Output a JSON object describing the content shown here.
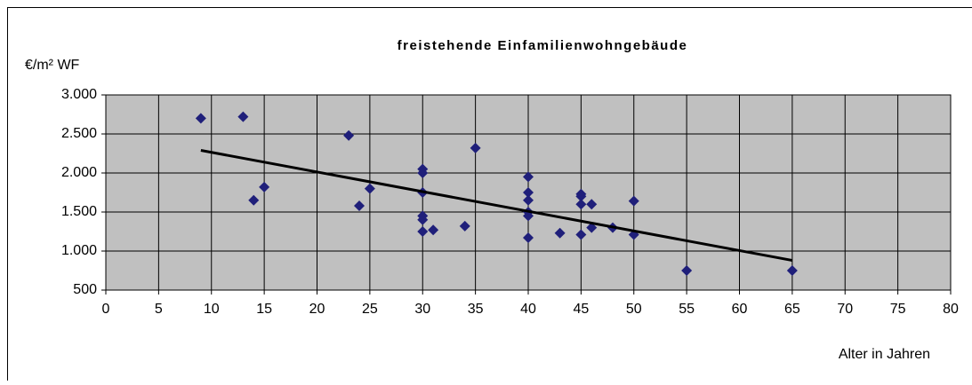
{
  "chart_data": {
    "type": "scatter",
    "title": "freistehende Einfamilienwohngebäude",
    "y_label": "€/m² WF",
    "x_label": "Alter in Jahren",
    "xlim": [
      0,
      80
    ],
    "xticks": [
      0,
      5,
      10,
      15,
      20,
      25,
      30,
      35,
      40,
      45,
      50,
      55,
      60,
      65,
      70,
      75,
      80
    ],
    "ylim": [
      500,
      3000
    ],
    "yticks": [
      500,
      {
        "value": 1000,
        "label": "1.000"
      },
      {
        "value": 1500,
        "label": "1.500"
      },
      {
        "value": 2000,
        "label": "2.000"
      },
      {
        "value": 2500,
        "label": "2.500"
      },
      {
        "value": 3000,
        "label": "3.000"
      }
    ],
    "grid": true,
    "series": [
      {
        "color": "#1f1f7a",
        "x": [
          9,
          13,
          14,
          15,
          23,
          24,
          25,
          30,
          30,
          30,
          30,
          30,
          30,
          31,
          34,
          35,
          40,
          40,
          40,
          40,
          40,
          40,
          43,
          45,
          45,
          45,
          45,
          46,
          46,
          48,
          50,
          50,
          55,
          65
        ],
        "values": [
          2700,
          2720,
          1650,
          1820,
          2480,
          1580,
          1800,
          2050,
          2000,
          1750,
          1450,
          1400,
          1250,
          1270,
          1320,
          2320,
          1950,
          1750,
          1650,
          1500,
          1450,
          1170,
          1230,
          1730,
          1700,
          1600,
          1210,
          1600,
          1300,
          1300,
          1640,
          1210,
          750,
          750
        ]
      }
    ],
    "trendline": {
      "color": "#000000",
      "x": [
        9,
        65
      ],
      "values": [
        2290,
        880
      ]
    }
  }
}
